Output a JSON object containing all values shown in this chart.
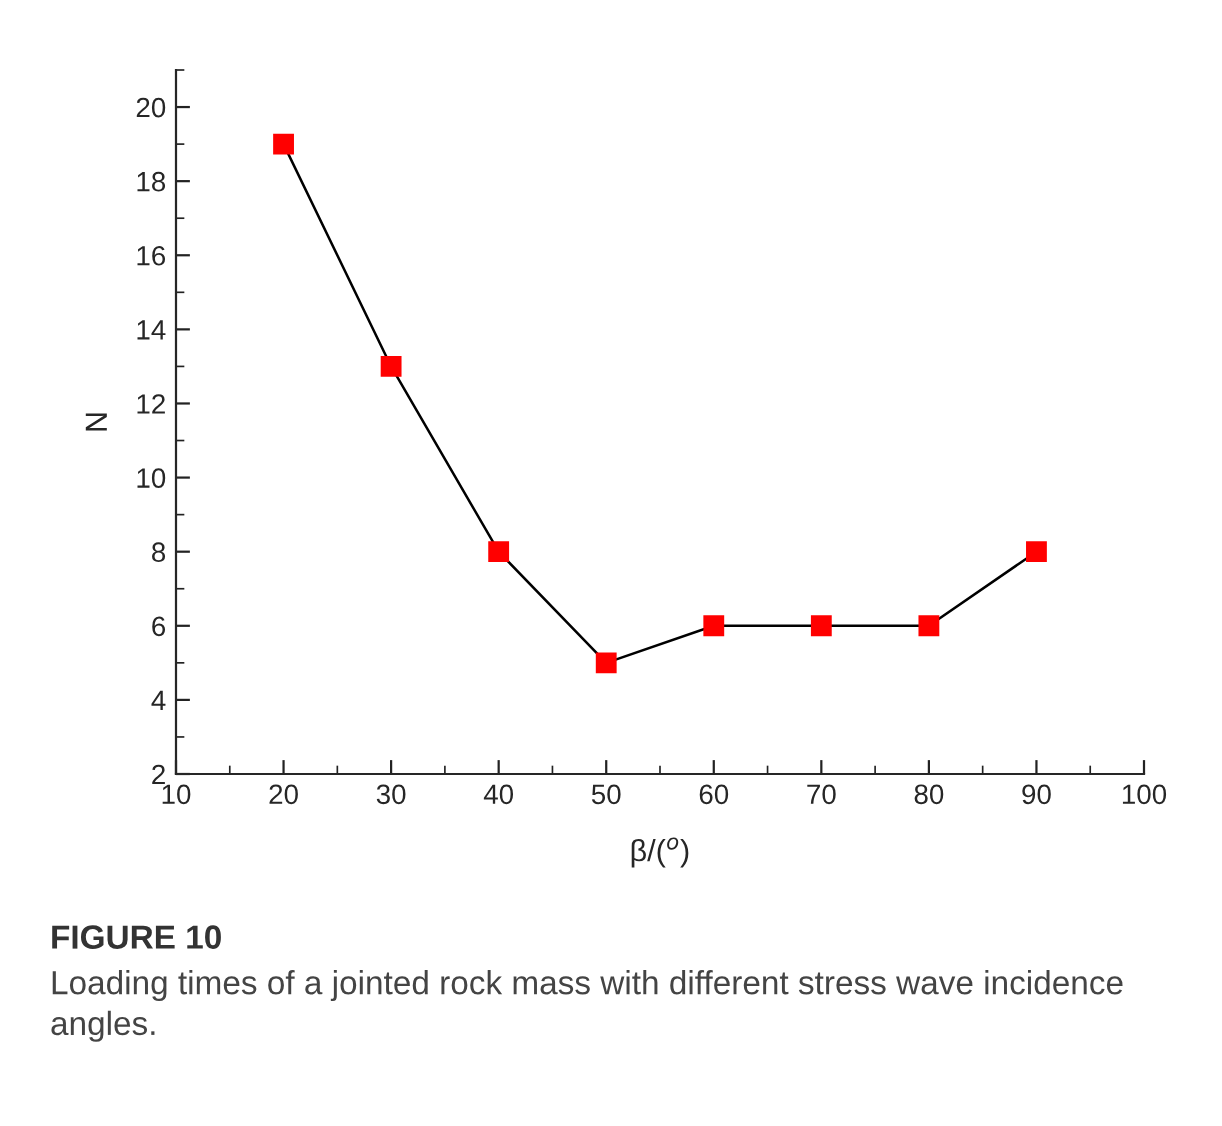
{
  "chart_data": {
    "type": "line",
    "x": [
      20,
      30,
      40,
      50,
      60,
      70,
      80,
      90
    ],
    "series": [
      {
        "color": "#ff0000",
        "values": [
          19,
          13,
          8,
          5,
          6,
          6,
          6,
          8
        ]
      }
    ],
    "marker": "square",
    "line_style": "solid",
    "xlabel": "β/($^{o}$)",
    "ylabel": "N",
    "xlim": [
      10,
      100
    ],
    "xticks": [
      10,
      20,
      30,
      40,
      50,
      60,
      70,
      80,
      90,
      100
    ],
    "ylim": [
      2,
      21
    ],
    "yticks": [
      2,
      4,
      6,
      8,
      10,
      12,
      14,
      16,
      18,
      20
    ],
    "grid": false,
    "annotations": [
      "FIGURE 10",
      "Loading times of a jointed rock mass with different stress wave incidence angles."
    ]
  }
}
